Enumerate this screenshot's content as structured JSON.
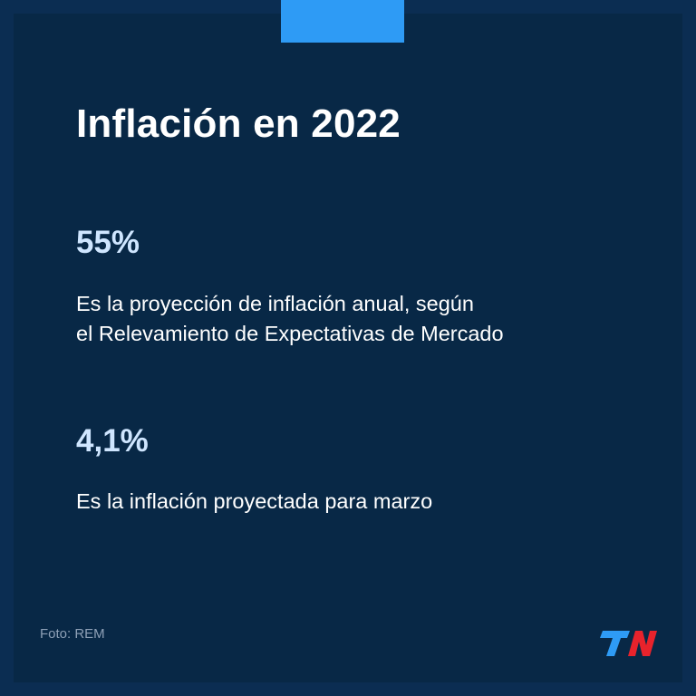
{
  "title": "Inflación en 2022",
  "stats": [
    {
      "value": "55%",
      "description_lines": [
        "Es la proyección de inflación anual, según",
        "el Relevamiento de Expectativas de Mercado"
      ]
    },
    {
      "value": "4,1%",
      "description_lines": [
        "Es la inflación proyectada para marzo"
      ]
    }
  ],
  "credit": "Foto: REM",
  "logo": {
    "text": "TN",
    "colors": {
      "t": "#2e9bf5",
      "n": "#e8232c"
    }
  },
  "colors": {
    "background": "#082846",
    "border": "#0b2d52",
    "accent": "#2e9bf5",
    "stat_value": "#cfe6ff"
  }
}
